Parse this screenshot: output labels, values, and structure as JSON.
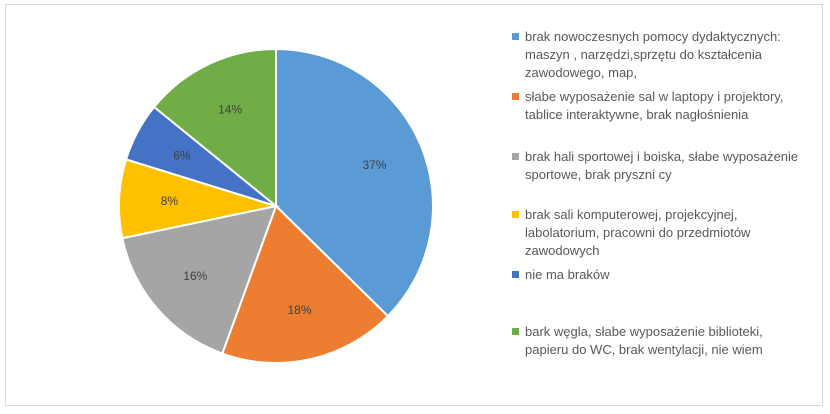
{
  "chart_data": {
    "type": "pie",
    "title": "",
    "slices": [
      {
        "label": "brak nowoczesnych pomocy dydaktycznych: maszyn , narzędzi,sprzętu do kształcenia zawodowego, map,",
        "value": 37,
        "display": "37%",
        "color": "#5b9bd5"
      },
      {
        "label": "słabe wyposażenie sal w laptopy i projektory, tablice interaktywne, brak nagłośnienia",
        "value": 18,
        "display": "18%",
        "color": "#ed7d31"
      },
      {
        "label": "brak hali sportowej i boiska, słabe wyposażenie sportowe, brak pryszni cy",
        "value": 16,
        "display": "16%",
        "color": "#a5a5a5"
      },
      {
        "label": "brak sali komputerowej, projekcyjnej, labolatorium, pracowni do przedmiotów zawodowych",
        "value": 8,
        "display": "8%",
        "color": "#ffc000"
      },
      {
        "label": "nie ma braków",
        "value": 6,
        "display": "6%",
        "color": "#4472c4"
      },
      {
        "label": "bark węgla, słabe wyposażenie biblioteki, papieru do WC, brak wentylacji, nie wiem",
        "value": 14,
        "display": "14%",
        "color": "#70ad47"
      }
    ],
    "legend_position": "right",
    "start_angle_deg": 0,
    "direction": "clockwise"
  }
}
